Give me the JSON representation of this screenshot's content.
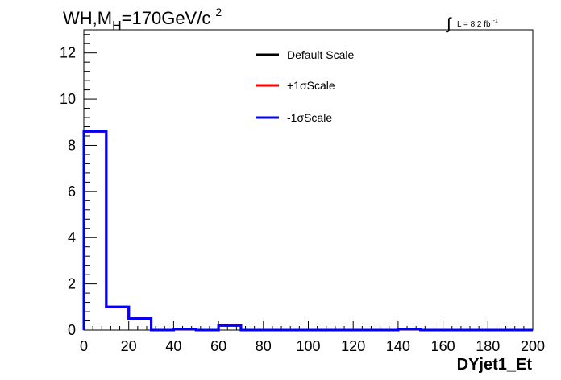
{
  "chart_data": {
    "type": "line",
    "title_main": "WH,M",
    "title_sub": "H",
    "title_rest": "=170GeV/c",
    "title_sup": "2",
    "lumi_label": "L = 8.2 fb",
    "lumi_sup": "-1",
    "lumi_integral": "∫",
    "xlabel": "DYjet1_Et",
    "ylabel": "",
    "xlim": [
      0,
      200
    ],
    "ylim": [
      0,
      13
    ],
    "x_ticks": [
      0,
      20,
      40,
      60,
      80,
      100,
      120,
      140,
      160,
      180,
      200
    ],
    "y_ticks": [
      0,
      2,
      4,
      6,
      8,
      10,
      12
    ],
    "bin_edges": [
      0,
      10,
      20,
      30,
      40,
      50,
      60,
      70,
      80,
      90,
      100,
      110,
      120,
      130,
      140,
      150,
      160,
      170,
      180,
      190,
      200
    ],
    "legend_position": "top-center",
    "series": [
      {
        "name": "Default Scale",
        "color": "#000000",
        "values": [
          8.6,
          1.0,
          0.5,
          0.0,
          0.05,
          0.0,
          0.2,
          0.0,
          0.0,
          0.0,
          0.0,
          0.0,
          0.0,
          0.0,
          0.05,
          0.0,
          0.0,
          0.0,
          0.0,
          0.0
        ]
      },
      {
        "name": "+1σScale",
        "color": "#ff0000",
        "values": [
          8.6,
          1.0,
          0.5,
          0.0,
          0.05,
          0.0,
          0.2,
          0.0,
          0.0,
          0.0,
          0.0,
          0.0,
          0.0,
          0.0,
          0.05,
          0.0,
          0.0,
          0.0,
          0.0,
          0.0
        ]
      },
      {
        "name": "-1σScale",
        "color": "#0000ff",
        "values": [
          8.6,
          1.0,
          0.5,
          0.0,
          0.05,
          0.0,
          0.2,
          0.0,
          0.0,
          0.0,
          0.0,
          0.0,
          0.0,
          0.0,
          0.05,
          0.0,
          0.0,
          0.0,
          0.0,
          0.0
        ]
      }
    ]
  }
}
